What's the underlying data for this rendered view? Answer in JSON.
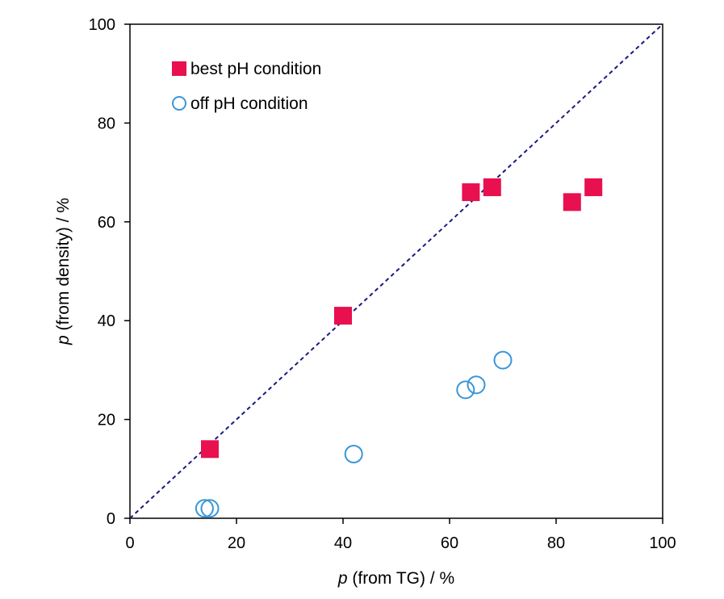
{
  "chart_data": {
    "type": "scatter",
    "title": "",
    "xlabel": {
      "italic": "p",
      "text": " (from TG) / %"
    },
    "ylabel": {
      "italic": "p",
      "text": " (from density) / %"
    },
    "xlim": [
      0,
      100
    ],
    "ylim": [
      0,
      100
    ],
    "xticks": [
      "0",
      "20",
      "40",
      "60",
      "80",
      "100"
    ],
    "yticks": [
      "0",
      "20",
      "40",
      "60",
      "80",
      "100"
    ],
    "grid": false,
    "legend_position": "top-left",
    "reference_line": {
      "type": "y=x",
      "style": "dashed",
      "color": "#1a1a80"
    },
    "series": [
      {
        "name": "best pH condition",
        "marker": "filled-square",
        "color": "#e8104e",
        "points": [
          {
            "x": 15,
            "y": 14
          },
          {
            "x": 40,
            "y": 41
          },
          {
            "x": 64,
            "y": 66
          },
          {
            "x": 68,
            "y": 67
          },
          {
            "x": 83,
            "y": 64
          },
          {
            "x": 87,
            "y": 67
          }
        ]
      },
      {
        "name": "off pH condition",
        "marker": "open-circle",
        "color": "#3a96d8",
        "points": [
          {
            "x": 14,
            "y": 2
          },
          {
            "x": 15,
            "y": 2
          },
          {
            "x": 42,
            "y": 13
          },
          {
            "x": 63,
            "y": 26
          },
          {
            "x": 65,
            "y": 27
          },
          {
            "x": 70,
            "y": 32
          }
        ]
      }
    ]
  }
}
